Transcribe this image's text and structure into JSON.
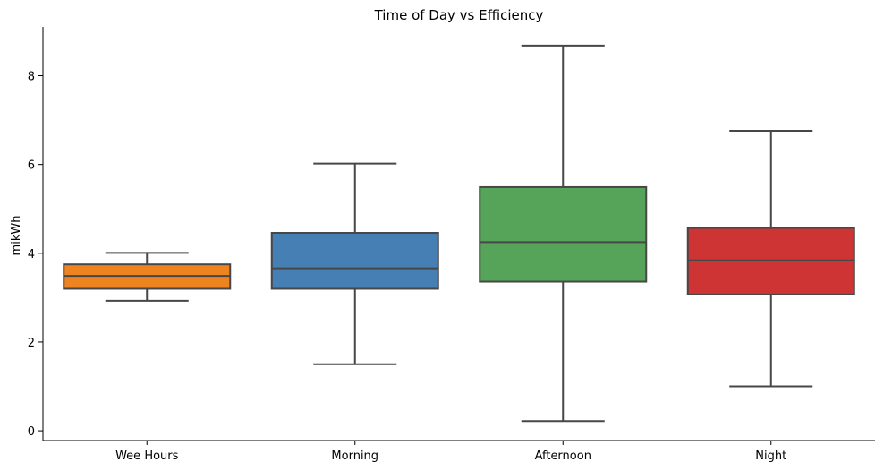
{
  "chart_data": {
    "type": "box",
    "title": "Time of Day vs Efficiency",
    "xlabel": "",
    "ylabel": "mikWh",
    "categories": [
      "Wee Hours",
      "Morning",
      "Afternoon",
      "Night"
    ],
    "yticks": [
      "0",
      "2",
      "4",
      "6",
      "8"
    ],
    "ylim": [
      -0.22,
      9.1
    ],
    "grid": false,
    "boxes": [
      {
        "category": "Wee Hours",
        "min": 2.93,
        "q1": 3.2,
        "median": 3.49,
        "q3": 3.75,
        "max": 4.01,
        "color": "#ee8420"
      },
      {
        "category": "Morning",
        "min": 1.5,
        "q1": 3.2,
        "median": 3.66,
        "q3": 4.46,
        "max": 6.02,
        "color": "#467fb4"
      },
      {
        "category": "Afternoon",
        "min": 0.22,
        "q1": 3.36,
        "median": 4.25,
        "q3": 5.49,
        "max": 8.68,
        "color": "#56a45a"
      },
      {
        "category": "Night",
        "min": 1.0,
        "q1": 3.07,
        "median": 3.84,
        "q3": 4.57,
        "max": 6.76,
        "color": "#cf3434"
      }
    ]
  }
}
